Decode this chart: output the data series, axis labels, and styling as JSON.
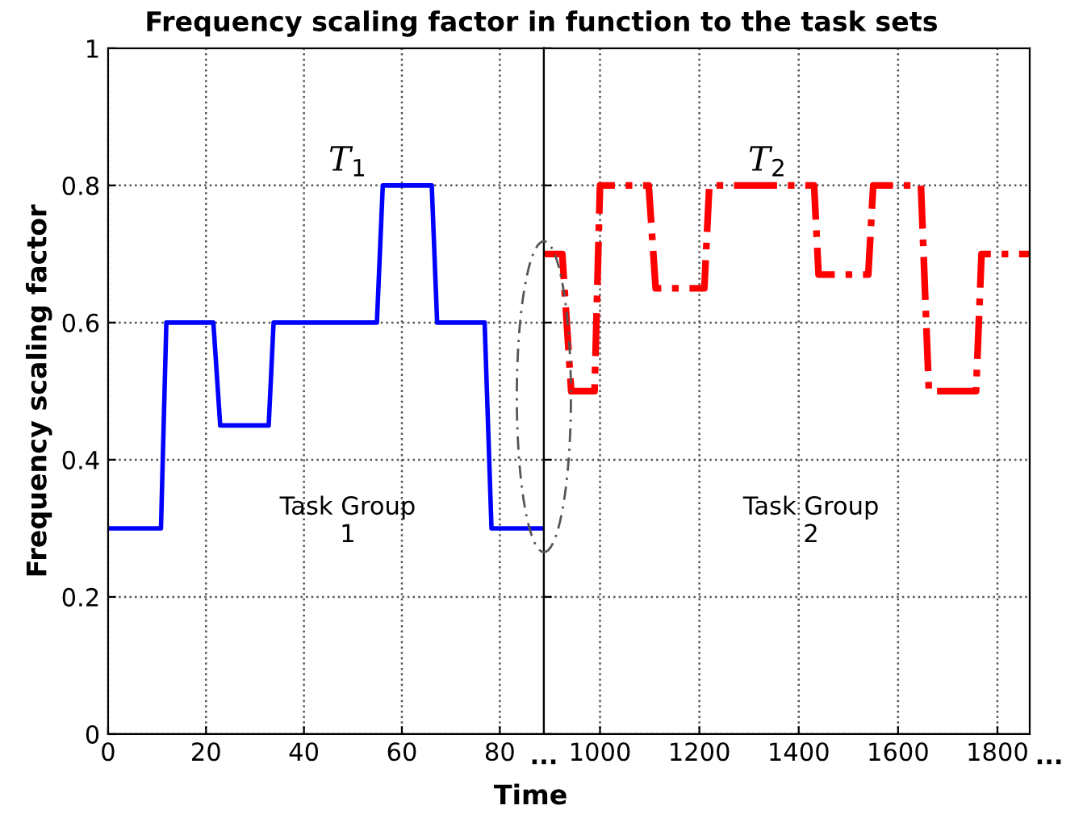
{
  "chart_data": [
    {
      "type": "line",
      "title": "Frequency scaling factor in function to the task sets",
      "xlabel": "Time",
      "ylabel": "Frequency scaling factor",
      "x": [
        0,
        10.8,
        11.9,
        21.5,
        22.9,
        32.8,
        33.8,
        54.9,
        56.1,
        66.1,
        67.2,
        76.9,
        78.3,
        88.6
      ],
      "series": [
        {
          "color": "#0000ff",
          "values": [
            0.3,
            0.3,
            0.6,
            0.6,
            0.45,
            0.45,
            0.6,
            0.6,
            0.8,
            0.8,
            0.6,
            0.6,
            0.3,
            0.3
          ],
          "line_style": "solid"
        }
      ],
      "xlim": [
        0,
        89
      ],
      "ylim": [
        0,
        1
      ],
      "xticks": [
        0,
        20,
        40,
        60,
        80
      ],
      "yticks": [
        0,
        0.2,
        0.4,
        0.6,
        0.8,
        1
      ],
      "grid": true,
      "annotations": [
        "T$_{1}$",
        "Task Group\n1",
        "···"
      ]
    },
    {
      "type": "line",
      "x": [
        888,
        924,
        942,
        989,
        1000,
        1098,
        1112,
        1210,
        1220,
        1431,
        1440,
        1540,
        1550,
        1646,
        1662,
        1757,
        1768,
        1865
      ],
      "series": [
        {
          "color": "#ff0000",
          "values": [
            0.7,
            0.7,
            0.5,
            0.5,
            0.8,
            0.8,
            0.65,
            0.65,
            0.8,
            0.8,
            0.67,
            0.67,
            0.8,
            0.8,
            0.5,
            0.5,
            0.7,
            0.7
          ],
          "line_style": "dashdot"
        }
      ],
      "xlim": [
        887,
        1865
      ],
      "ylim": [
        0,
        1
      ],
      "xticks": [
        1000,
        1200,
        1400,
        1600,
        1800
      ],
      "yticks": [
        0,
        0.2,
        0.4,
        0.6,
        0.8,
        1
      ],
      "tick_labels": "x",
      "grid": true,
      "annotations": [
        "T$_{2}$",
        "Task Group\n2",
        "···"
      ]
    }
  ]
}
